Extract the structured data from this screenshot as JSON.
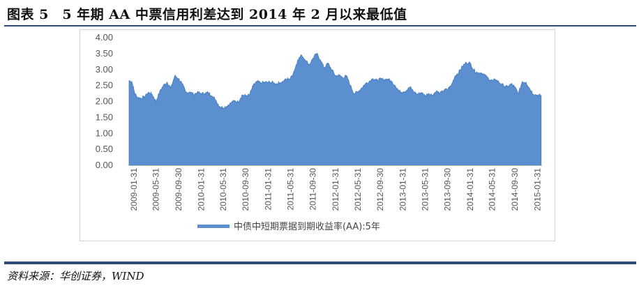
{
  "header": {
    "figure_title": "图表 5　5 年期 AA 中票信用利差达到 2014 年 2 月以来最低值"
  },
  "footer": {
    "source": "资料来源：华创证券，WIND"
  },
  "colors": {
    "series_fill": "#5b8fcf",
    "series_stroke": "#4a7fc0",
    "rule": "#2e4a7a",
    "axis_text": "#555555"
  },
  "chart_data": {
    "type": "area",
    "ylim": [
      0,
      4
    ],
    "y_ticks": [
      "0.00",
      "0.50",
      "1.00",
      "1.50",
      "2.00",
      "2.50",
      "3.00",
      "3.50",
      "4.00"
    ],
    "x_tick_labels": [
      "2009-01-31",
      "2009-05-31",
      "2009-09-30",
      "2010-01-31",
      "2010-05-31",
      "2010-09-30",
      "2011-01-31",
      "2011-05-31",
      "2011-09-30",
      "2012-01-31",
      "2012-05-31",
      "2012-09-30",
      "2013-01-31",
      "2013-05-31",
      "2013-09-30",
      "2014-01-31",
      "2014-05-31",
      "2014-09-30",
      "2015-01-31"
    ],
    "legend": "top-less-bottom",
    "legend_position": "bottom",
    "series": [
      {
        "name": "中债中短期票据到期收益率(AA):5年",
        "points": [
          [
            "2009-01-05",
            2.65
          ],
          [
            "2009-01-20",
            2.62
          ],
          [
            "2009-02-05",
            2.25
          ],
          [
            "2009-02-20",
            2.12
          ],
          [
            "2009-03-10",
            2.1
          ],
          [
            "2009-03-31",
            2.15
          ],
          [
            "2009-04-20",
            2.28
          ],
          [
            "2009-05-10",
            2.22
          ],
          [
            "2009-05-31",
            2.0
          ],
          [
            "2009-06-20",
            2.3
          ],
          [
            "2009-07-10",
            2.5
          ],
          [
            "2009-07-31",
            2.6
          ],
          [
            "2009-08-20",
            2.42
          ],
          [
            "2009-09-10",
            2.8
          ],
          [
            "2009-09-30",
            2.72
          ],
          [
            "2009-10-20",
            2.55
          ],
          [
            "2009-11-10",
            2.28
          ],
          [
            "2009-11-30",
            2.3
          ],
          [
            "2009-12-20",
            2.22
          ],
          [
            "2010-01-10",
            2.28
          ],
          [
            "2010-01-31",
            2.25
          ],
          [
            "2010-02-20",
            2.25
          ],
          [
            "2010-03-10",
            2.28
          ],
          [
            "2010-03-31",
            2.18
          ],
          [
            "2010-04-20",
            2.05
          ],
          [
            "2010-05-10",
            1.85
          ],
          [
            "2010-05-31",
            1.8
          ],
          [
            "2010-06-20",
            1.85
          ],
          [
            "2010-07-10",
            1.95
          ],
          [
            "2010-07-31",
            2.02
          ],
          [
            "2010-08-20",
            1.98
          ],
          [
            "2010-09-10",
            2.2
          ],
          [
            "2010-09-30",
            2.18
          ],
          [
            "2010-10-20",
            2.2
          ],
          [
            "2010-11-10",
            2.5
          ],
          [
            "2010-11-30",
            2.62
          ],
          [
            "2010-12-20",
            2.58
          ],
          [
            "2011-01-10",
            2.6
          ],
          [
            "2011-01-31",
            2.6
          ],
          [
            "2011-02-20",
            2.6
          ],
          [
            "2011-03-10",
            2.55
          ],
          [
            "2011-03-31",
            2.58
          ],
          [
            "2011-04-20",
            2.62
          ],
          [
            "2011-05-10",
            2.7
          ],
          [
            "2011-05-31",
            2.72
          ],
          [
            "2011-06-20",
            2.95
          ],
          [
            "2011-07-10",
            3.3
          ],
          [
            "2011-07-31",
            3.45
          ],
          [
            "2011-08-20",
            3.3
          ],
          [
            "2011-09-10",
            3.15
          ],
          [
            "2011-09-30",
            3.35
          ],
          [
            "2011-10-20",
            3.5
          ],
          [
            "2011-11-10",
            3.3
          ],
          [
            "2011-11-30",
            3.05
          ],
          [
            "2011-12-20",
            3.2
          ],
          [
            "2012-01-10",
            3.0
          ],
          [
            "2012-01-31",
            2.8
          ],
          [
            "2012-02-20",
            2.82
          ],
          [
            "2012-03-10",
            2.75
          ],
          [
            "2012-03-31",
            2.8
          ],
          [
            "2012-04-20",
            2.5
          ],
          [
            "2012-05-10",
            2.25
          ],
          [
            "2012-05-31",
            2.3
          ],
          [
            "2012-06-20",
            2.42
          ],
          [
            "2012-07-10",
            2.55
          ],
          [
            "2012-07-31",
            2.62
          ],
          [
            "2012-08-20",
            2.72
          ],
          [
            "2012-09-10",
            2.65
          ],
          [
            "2012-09-30",
            2.7
          ],
          [
            "2012-10-20",
            2.68
          ],
          [
            "2012-11-10",
            2.7
          ],
          [
            "2012-11-30",
            2.62
          ],
          [
            "2012-12-20",
            2.5
          ],
          [
            "2013-01-10",
            2.32
          ],
          [
            "2013-01-31",
            2.3
          ],
          [
            "2013-02-20",
            2.35
          ],
          [
            "2013-03-10",
            2.45
          ],
          [
            "2013-03-31",
            2.3
          ],
          [
            "2013-04-20",
            2.22
          ],
          [
            "2013-05-10",
            2.28
          ],
          [
            "2013-05-31",
            2.18
          ],
          [
            "2013-06-20",
            2.25
          ],
          [
            "2013-07-10",
            2.2
          ],
          [
            "2013-07-31",
            2.32
          ],
          [
            "2013-08-20",
            2.25
          ],
          [
            "2013-09-10",
            2.35
          ],
          [
            "2013-09-30",
            2.38
          ],
          [
            "2013-10-20",
            2.5
          ],
          [
            "2013-11-10",
            2.8
          ],
          [
            "2013-11-30",
            2.92
          ],
          [
            "2013-12-20",
            3.1
          ],
          [
            "2014-01-10",
            3.22
          ],
          [
            "2014-01-31",
            3.2
          ],
          [
            "2014-02-20",
            2.98
          ],
          [
            "2014-03-10",
            2.9
          ],
          [
            "2014-03-31",
            2.9
          ],
          [
            "2014-04-20",
            2.82
          ],
          [
            "2014-05-10",
            2.72
          ],
          [
            "2014-05-31",
            2.65
          ],
          [
            "2014-06-20",
            2.68
          ],
          [
            "2014-07-10",
            2.58
          ],
          [
            "2014-07-31",
            2.5
          ],
          [
            "2014-08-20",
            2.45
          ],
          [
            "2014-09-10",
            2.55
          ],
          [
            "2014-09-30",
            2.45
          ],
          [
            "2014-10-20",
            2.25
          ],
          [
            "2014-11-10",
            2.62
          ],
          [
            "2014-11-30",
            2.6
          ],
          [
            "2014-12-20",
            2.4
          ],
          [
            "2015-01-10",
            2.22
          ],
          [
            "2015-01-31",
            2.2
          ],
          [
            "2015-02-20",
            2.18
          ]
        ]
      }
    ]
  }
}
